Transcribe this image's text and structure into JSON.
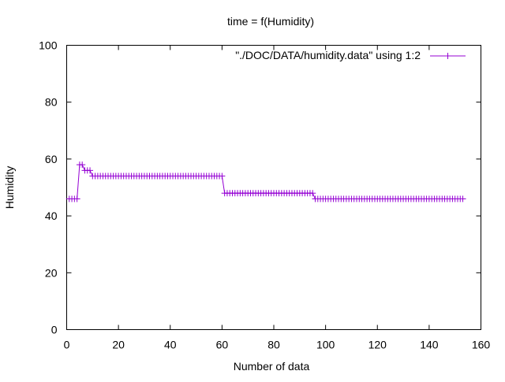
{
  "chart_data": {
    "type": "line",
    "title": "time = f(Humidity)",
    "xlabel": "Number of data",
    "ylabel": "Humidity",
    "xlim": [
      0,
      160
    ],
    "ylim": [
      0,
      100
    ],
    "xticks": [
      0,
      20,
      40,
      60,
      80,
      100,
      120,
      140,
      160
    ],
    "yticks": [
      0,
      20,
      40,
      60,
      80,
      100
    ],
    "grid": false,
    "legend_position": "top-right",
    "series": [
      {
        "name": "\"./DOC/DATA/humidity.data\" using 1:2",
        "color": "#9400d3",
        "marker": "plus",
        "segments": [
          {
            "x_from": 1,
            "x_to": 4,
            "y": 46
          },
          {
            "x_from": 5,
            "x_to": 6,
            "y": 58
          },
          {
            "x_from": 7,
            "x_to": 9,
            "y": 56
          },
          {
            "x_from": 10,
            "x_to": 60,
            "y": 54
          },
          {
            "x_from": 61,
            "x_to": 95,
            "y": 48
          },
          {
            "x_from": 96,
            "x_to": 153,
            "y": 46
          }
        ]
      }
    ]
  }
}
